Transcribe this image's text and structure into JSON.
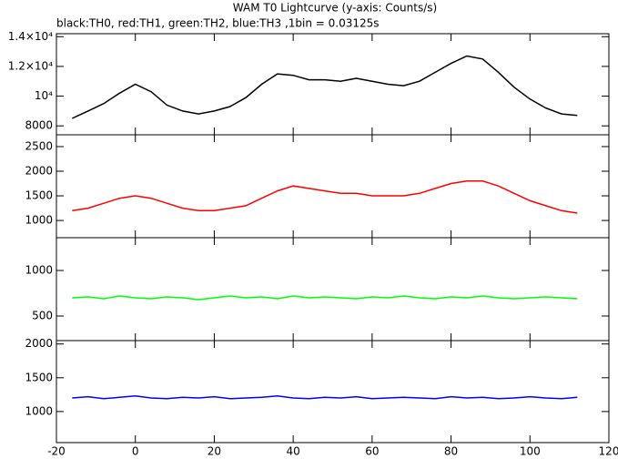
{
  "chart_data": [
    {
      "type": "line",
      "title": "WAM T0 Lightcurve (y-axis: Counts/s)",
      "subtitle": "black:TH0, red:TH1, green:TH2, blue:TH3 ,1bin = 0.03125s",
      "x": [
        -16,
        -12,
        -8,
        -4,
        0,
        4,
        8,
        12,
        16,
        20,
        24,
        28,
        32,
        36,
        40,
        44,
        48,
        52,
        56,
        60,
        64,
        68,
        72,
        76,
        80,
        84,
        88,
        92,
        96,
        100,
        104,
        108,
        112
      ],
      "series": [
        {
          "name": "TH0",
          "color": "#000000",
          "values": [
            8500,
            9000,
            9500,
            10200,
            10800,
            10300,
            9400,
            9000,
            8800,
            9000,
            9300,
            9900,
            10800,
            11500,
            11400,
            11100,
            11100,
            11000,
            11200,
            11000,
            10800,
            10700,
            11000,
            11600,
            12200,
            12700,
            12500,
            11600,
            10600,
            9800,
            9200,
            8800,
            8700
          ]
        }
      ],
      "xlim": [
        -20,
        120
      ],
      "xticks": [
        -20,
        0,
        20,
        40,
        60,
        80,
        100,
        120
      ],
      "ylim": [
        7400,
        14200
      ],
      "yticks": [
        8000,
        {
          "value": 10000,
          "label": "10⁴"
        },
        {
          "value": 12000,
          "label": "1.2×10⁴"
        },
        {
          "value": 14000,
          "label": "1.4×10⁴"
        }
      ]
    },
    {
      "type": "line",
      "x": [
        -16,
        -12,
        -8,
        -4,
        0,
        4,
        8,
        12,
        16,
        20,
        24,
        28,
        32,
        36,
        40,
        44,
        48,
        52,
        56,
        60,
        64,
        68,
        72,
        76,
        80,
        84,
        88,
        92,
        96,
        100,
        104,
        108,
        112
      ],
      "series": [
        {
          "name": "TH1",
          "color": "#ff0000",
          "values": [
            1200,
            1250,
            1350,
            1450,
            1500,
            1450,
            1350,
            1250,
            1200,
            1200,
            1250,
            1300,
            1450,
            1600,
            1700,
            1650,
            1600,
            1550,
            1550,
            1500,
            1500,
            1500,
            1550,
            1650,
            1750,
            1800,
            1800,
            1700,
            1550,
            1400,
            1300,
            1200,
            1150
          ]
        }
      ],
      "xlim": [
        -20,
        120
      ],
      "xticks": [
        -20,
        0,
        20,
        40,
        60,
        80,
        100,
        120
      ],
      "ylim": [
        650,
        2740
      ],
      "yticks": [
        1000,
        1500,
        2000,
        2500
      ]
    },
    {
      "type": "line",
      "x": [
        -16,
        -12,
        -8,
        -4,
        0,
        4,
        8,
        12,
        16,
        20,
        24,
        28,
        32,
        36,
        40,
        44,
        48,
        52,
        56,
        60,
        64,
        68,
        72,
        76,
        80,
        84,
        88,
        92,
        96,
        100,
        104,
        108,
        112
      ],
      "series": [
        {
          "name": "TH2",
          "color": "#00ff00",
          "values": [
            700,
            710,
            690,
            720,
            700,
            690,
            710,
            700,
            680,
            700,
            720,
            700,
            710,
            690,
            720,
            700,
            710,
            700,
            690,
            710,
            700,
            720,
            700,
            690,
            710,
            700,
            720,
            700,
            690,
            700,
            710,
            700,
            690
          ]
        }
      ],
      "xlim": [
        -20,
        120
      ],
      "xticks": [
        -20,
        0,
        20,
        40,
        60,
        80,
        100,
        120
      ],
      "ylim": [
        230,
        1360
      ],
      "yticks": [
        500,
        1000
      ]
    },
    {
      "type": "line",
      "x": [
        -16,
        -12,
        -8,
        -4,
        0,
        4,
        8,
        12,
        16,
        20,
        24,
        28,
        32,
        36,
        40,
        44,
        48,
        52,
        56,
        60,
        64,
        68,
        72,
        76,
        80,
        84,
        88,
        92,
        96,
        100,
        104,
        108,
        112
      ],
      "series": [
        {
          "name": "TH3",
          "color": "#0000ff",
          "values": [
            1200,
            1220,
            1190,
            1210,
            1230,
            1200,
            1190,
            1210,
            1200,
            1220,
            1190,
            1200,
            1210,
            1230,
            1200,
            1190,
            1210,
            1200,
            1220,
            1190,
            1200,
            1210,
            1200,
            1190,
            1220,
            1200,
            1210,
            1190,
            1200,
            1220,
            1200,
            1190,
            1210
          ]
        }
      ],
      "xlim": [
        -20,
        120
      ],
      "xticks": [
        -20,
        0,
        20,
        40,
        60,
        80,
        100,
        120
      ],
      "ylim": [
        540,
        2050
      ],
      "yticks": [
        1000,
        1500,
        2000
      ]
    }
  ]
}
